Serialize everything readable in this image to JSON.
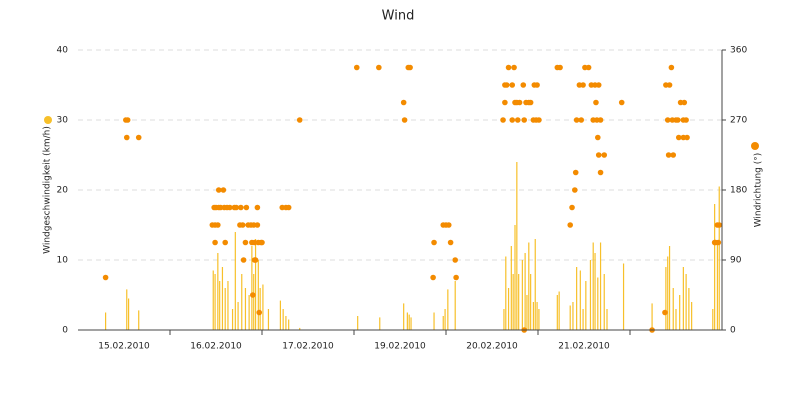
{
  "chart_data": {
    "type": "combo",
    "title": "Wind",
    "y_label": "Windgeschwindigkeit (km/h)",
    "y2_label": "Windrichtung (°)",
    "categories": [
      "15.02.2010",
      "16.02.2010",
      "17.02.2010",
      "19.02.2010",
      "20.02.2010",
      "21.02.2010",
      null
    ],
    "xlim": [
      0,
      7
    ],
    "ylim": [
      0,
      40
    ],
    "yticks": [
      0,
      10,
      20,
      30,
      40
    ],
    "y2lim": [
      0,
      360
    ],
    "y2ticks": [
      0,
      90,
      180,
      270,
      360
    ],
    "grid": true,
    "series": [
      {
        "type": "bar",
        "color": "#f7c02a",
        "x": [
          0.3,
          0.53,
          0.55,
          0.66,
          1.47,
          1.49,
          1.52,
          1.54,
          1.57,
          1.6,
          1.63,
          1.68,
          1.71,
          1.74,
          1.78,
          1.82,
          1.86,
          1.89,
          1.91,
          1.93,
          1.96,
          1.98,
          2.01,
          2.07,
          2.2,
          2.23,
          2.26,
          2.29,
          2.41,
          3.04,
          3.28,
          3.54,
          3.58,
          3.6,
          3.62,
          3.87,
          3.97,
          3.99,
          4.02,
          4.1,
          4.63,
          4.65,
          4.68,
          4.71,
          4.73,
          4.75,
          4.77,
          4.79,
          4.83,
          4.86,
          4.88,
          4.9,
          4.92,
          4.95,
          4.97,
          4.99,
          5.01,
          5.21,
          5.23,
          5.35,
          5.38,
          5.42,
          5.46,
          5.49,
          5.52,
          5.57,
          5.6,
          5.62,
          5.65,
          5.68,
          5.72,
          5.75,
          5.93,
          6.24,
          6.39,
          6.41,
          6.43,
          6.47,
          6.5,
          6.54,
          6.58,
          6.61,
          6.64,
          6.67,
          6.9,
          6.92,
          6.95,
          6.97
        ],
        "values": [
          2.5,
          5.8,
          4.5,
          2.8,
          8.5,
          8,
          11,
          7,
          9,
          6,
          7,
          3,
          14,
          4,
          8,
          6,
          5,
          12,
          8,
          13,
          10,
          6,
          6.5,
          3,
          4.2,
          3,
          2,
          1.5,
          0.3,
          2,
          1.8,
          3.8,
          2.5,
          2.2,
          1.8,
          2.5,
          2,
          3,
          5.8,
          7,
          3,
          10.5,
          6,
          12,
          8,
          15,
          24,
          8,
          10,
          11,
          5,
          12.5,
          8,
          4,
          13,
          4,
          3,
          5,
          5.5,
          3.5,
          4,
          9,
          8.5,
          3,
          7,
          10,
          12.5,
          11,
          7.5,
          12.5,
          8,
          3,
          9.5,
          3.8,
          9,
          10.5,
          12,
          6,
          3,
          5,
          9,
          8,
          6,
          4,
          3,
          18,
          12.5,
          20.5
        ]
      },
      {
        "type": "scatter",
        "axis": "y2",
        "color": "#f38b00",
        "x": [
          0.3,
          0.52,
          0.54,
          0.53,
          0.66,
          1.46,
          1.49,
          1.52,
          1.48,
          1.5,
          1.53,
          1.55,
          1.59,
          1.62,
          1.65,
          1.7,
          1.72,
          1.53,
          1.58,
          1.49,
          1.6,
          1.76,
          1.79,
          1.85,
          1.88,
          1.91,
          1.95,
          1.82,
          1.89,
          1.92,
          1.96,
          1.99,
          1.77,
          1.83,
          1.95,
          1.8,
          1.92,
          1.93,
          1.9,
          1.97,
          2.0,
          2.22,
          2.26,
          2.29,
          2.41,
          3.03,
          3.27,
          3.54,
          3.55,
          3.59,
          3.61,
          3.87,
          3.86,
          3.97,
          4.0,
          4.03,
          4.05,
          4.1,
          4.11,
          4.62,
          4.64,
          4.64,
          4.68,
          4.74,
          4.66,
          4.72,
          4.75,
          4.77,
          4.8,
          4.72,
          4.78,
          4.84,
          4.87,
          4.9,
          4.85,
          4.92,
          4.95,
          4.98,
          5.01,
          4.96,
          4.99,
          4.85,
          5.21,
          5.24,
          5.35,
          5.37,
          5.4,
          5.41,
          5.42,
          5.45,
          5.47,
          5.51,
          5.55,
          5.49,
          5.58,
          5.62,
          5.66,
          5.6,
          5.64,
          5.68,
          5.63,
          5.65,
          5.66,
          5.72,
          5.68,
          5.91,
          6.24,
          6.38,
          6.39,
          6.43,
          6.41,
          6.46,
          6.45,
          6.42,
          6.47,
          6.5,
          6.53,
          6.58,
          6.62,
          6.55,
          6.59,
          6.52,
          6.58,
          6.61,
          6.92,
          6.96,
          6.95,
          6.97,
          6.93
        ],
        "values": [
          67.5,
          270,
          270,
          247.5,
          247.5,
          135,
          135,
          135,
          157.5,
          157.5,
          157.5,
          157.5,
          157.5,
          157.5,
          157.5,
          157.5,
          157.5,
          180,
          180,
          112.5,
          112.5,
          135,
          135,
          135,
          135,
          135,
          135,
          112.5,
          112.5,
          112.5,
          112.5,
          112.5,
          157.5,
          157.5,
          157.5,
          90,
          90,
          90,
          45,
          22.5,
          112.5,
          157.5,
          157.5,
          157.5,
          270,
          337.5,
          337.5,
          292.5,
          270,
          337.5,
          337.5,
          112.5,
          67.5,
          135,
          135,
          135,
          112.5,
          90,
          67.5,
          270,
          292.5,
          315,
          337.5,
          337.5,
          315,
          315,
          292.5,
          292.5,
          292.5,
          270,
          270,
          315,
          292.5,
          292.5,
          270,
          292.5,
          270,
          270,
          270,
          315,
          315,
          0,
          337.5,
          337.5,
          135,
          157.5,
          180,
          202.5,
          270,
          315,
          270,
          337.5,
          337.5,
          315,
          315,
          315,
          315,
          270,
          270,
          270,
          292.5,
          247.5,
          225,
          225,
          202.5,
          292.5,
          0,
          22.5,
          315,
          315,
          270,
          270,
          337.5,
          225,
          225,
          270,
          247.5,
          247.5,
          247.5,
          292.5,
          292.5,
          270,
          270,
          270,
          112.5,
          112.5,
          135,
          135,
          112.5
        ]
      }
    ]
  }
}
